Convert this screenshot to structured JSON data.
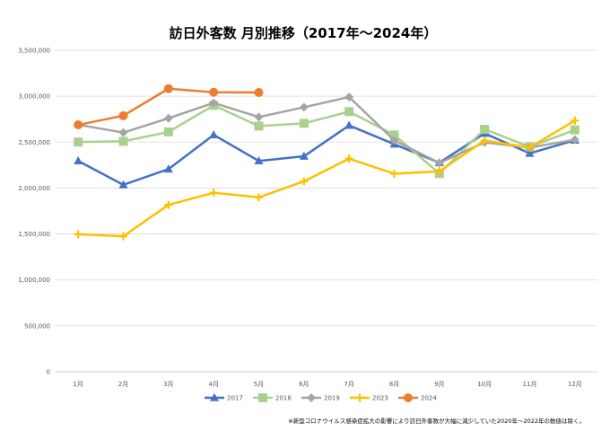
{
  "chart_data": {
    "type": "line",
    "title": "訪日外客数 月別推移（2017年～2024年）",
    "xlabel": "",
    "ylabel": "",
    "categories": [
      "1月",
      "2月",
      "3月",
      "4月",
      "5月",
      "6月",
      "7月",
      "8月",
      "9月",
      "10月",
      "11月",
      "12月"
    ],
    "ylim": [
      0,
      3500000
    ],
    "yticks": [
      0,
      500000,
      1000000,
      1500000,
      2000000,
      2500000,
      3000000,
      3500000
    ],
    "ytick_labels": [
      "0",
      "500,000",
      "1,000,000",
      "1,500,000",
      "2,000,000",
      "2,500,000",
      "3,000,000",
      "3,500,000"
    ],
    "grid": true,
    "legend_position": "bottom",
    "series": [
      {
        "name": "2017",
        "color": "#4472C4",
        "marker": "triangle",
        "values": [
          2295000,
          2035000,
          2206000,
          2579000,
          2295000,
          2346000,
          2682000,
          2478000,
          2276000,
          2595000,
          2378000,
          2521000
        ]
      },
      {
        "name": "2018",
        "color": "#A9D18E",
        "marker": "square",
        "values": [
          2501000,
          2509000,
          2611000,
          2901000,
          2675000,
          2705000,
          2832000,
          2578000,
          2159000,
          2640000,
          2449000,
          2633000
        ]
      },
      {
        "name": "2019",
        "color": "#A5A5A5",
        "marker": "diamond",
        "values": [
          2689000,
          2604000,
          2760000,
          2927000,
          2773000,
          2880000,
          2991000,
          2520000,
          2273000,
          2497000,
          2441000,
          2526000
        ]
      },
      {
        "name": "2023",
        "color": "#FFC000",
        "marker": "plus",
        "values": [
          1497000,
          1475000,
          1817000,
          1949000,
          1899000,
          2073000,
          2320000,
          2156000,
          2183000,
          2517000,
          2442000,
          2734000
        ]
      },
      {
        "name": "2024",
        "color": "#ED7D31",
        "marker": "circle",
        "values": [
          2688000,
          2788000,
          3082000,
          3043000,
          3040000,
          null,
          null,
          null,
          null,
          null,
          null,
          null
        ]
      }
    ],
    "note": "※新型コロナウイルス感染症拡大の影響により訪日外客数が大幅に減少していた2020年～2022年の数値は除く。"
  }
}
